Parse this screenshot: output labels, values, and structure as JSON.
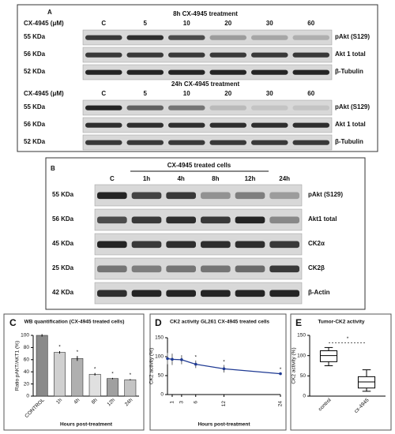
{
  "panels": {
    "a": {
      "letter": "A",
      "blocks": [
        {
          "title": "8h CX-4945 treatment",
          "dose_label": "CX-4945 (μM)",
          "lanes": [
            "C",
            "5",
            "10",
            "20",
            "30",
            "60"
          ],
          "rows": [
            {
              "size": "55 KDa",
              "name": "pAkt (S129)"
            },
            {
              "size": "56 KDa",
              "name": "Akt 1 total"
            },
            {
              "size": "52 KDa",
              "name": "β-Tubulin"
            }
          ]
        },
        {
          "title": "24h CX-4945 treatment",
          "dose_label": "CX-4945 (μM)",
          "lanes": [
            "C",
            "5",
            "10",
            "20",
            "30",
            "60"
          ],
          "rows": [
            {
              "size": "55 KDa",
              "name": "pAkt (S129)"
            },
            {
              "size": "56 KDa",
              "name": "Akt 1 total"
            },
            {
              "size": "52 KDa",
              "name": "β-Tubulin"
            }
          ]
        }
      ]
    },
    "b": {
      "letter": "B",
      "title": "CX-4945 treated cells",
      "lanes": [
        "C",
        "1h",
        "4h",
        "8h",
        "12h",
        "24h"
      ],
      "rows": [
        {
          "size": "55 KDa",
          "name": "pAkt (S129)"
        },
        {
          "size": "56 KDa",
          "name": "Akt1 total"
        },
        {
          "size": "45 KDa",
          "name": "CK2α"
        },
        {
          "size": "25 KDa",
          "name": "CK2β"
        },
        {
          "size": "42 KDa",
          "name": "β-Actin"
        }
      ]
    }
  },
  "chart_data": [
    {
      "type": "bar",
      "letter": "C",
      "title": "WB quantification (CX-4945 treated cells)",
      "y_label": "Ratio pAKT/AKT1 (%)",
      "x_label": "Hours post-treatment",
      "categories": [
        "CONTROL",
        "1h",
        "4h",
        "8h",
        "12h",
        "24h"
      ],
      "values": [
        100,
        72,
        62,
        36,
        29,
        27
      ],
      "errors": [
        2,
        2,
        4,
        2,
        1,
        1
      ],
      "significance": [
        null,
        "*",
        "*",
        "*",
        "*",
        "*"
      ],
      "colors": [
        "#8a8a8a",
        "#d0d0d0",
        "#b0b0b0",
        "#e0e0e0",
        "#a0a0a0",
        "#c4c4c4"
      ],
      "ylim": [
        0,
        100
      ],
      "yticks": [
        0,
        20,
        40,
        60,
        80,
        100
      ]
    },
    {
      "type": "line",
      "letter": "D",
      "title": "CK2 activity GL261 CX-4945 treated cells",
      "y_label": "CK2 activity (%)",
      "x_label": "Hours post-treatment",
      "x": [
        0,
        1,
        3,
        6,
        12,
        24
      ],
      "values": [
        95,
        93,
        92,
        80,
        68,
        55
      ],
      "errors": [
        15,
        15,
        12,
        10,
        10,
        3
      ],
      "significance": [
        null,
        null,
        null,
        "*",
        "*",
        "*"
      ],
      "color": "#1f3a93",
      "xlim": [
        0,
        24
      ],
      "xticks": [
        1,
        3,
        6,
        12,
        24
      ],
      "ylim": [
        0,
        150
      ],
      "yticks": [
        0,
        50,
        100,
        150
      ]
    },
    {
      "type": "box",
      "letter": "E",
      "title": "Tumor-CK2 activity",
      "y_label": "CK2 activity (%)",
      "categories": [
        "control",
        "cx-4945"
      ],
      "boxes": [
        {
          "min": 75,
          "q1": 85,
          "median": 100,
          "q3": 112,
          "max": 120
        },
        {
          "min": 12,
          "q1": 20,
          "median": 35,
          "q3": 48,
          "max": 65
        }
      ],
      "annotation": "*",
      "ylim": [
        0,
        150
      ],
      "yticks": [
        0,
        50,
        100,
        150
      ]
    }
  ]
}
